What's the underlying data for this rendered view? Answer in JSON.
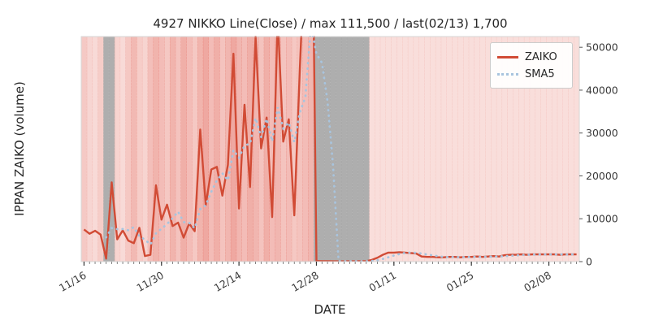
{
  "figure": {
    "title": "4927 NIKKO Line(Close) / max 111,500 / last(02/13) 1,700",
    "xlabel": "DATE",
    "ylabel": "IPPAN ZAIKO (volume)"
  },
  "legend": {
    "items": [
      {
        "label": "ZAIKO",
        "style": "solid",
        "color": "#d14b35"
      },
      {
        "label": "SMA5",
        "style": "dotted",
        "color": "#a8c4de"
      }
    ]
  },
  "chart_data": {
    "type": "line",
    "title": "4927 NIKKO Line(Close) / max 111,500 / last(02/13) 1,700",
    "xlabel": "DATE",
    "ylabel": "IPPAN ZAIKO (volume)",
    "n_days": 90,
    "ylim": [
      0,
      52500
    ],
    "y_ticks": [
      0,
      10000,
      20000,
      30000,
      40000,
      50000
    ],
    "x_ticks": [
      {
        "index": 0,
        "label": "11/16"
      },
      {
        "index": 14,
        "label": "11/30"
      },
      {
        "index": 28,
        "label": "12/14"
      },
      {
        "index": 42,
        "label": "12/28"
      },
      {
        "index": 56,
        "label": "01/11"
      },
      {
        "index": 70,
        "label": "01/25"
      },
      {
        "index": 84,
        "label": "02/08"
      }
    ],
    "series": [
      {
        "name": "ZAIKO",
        "style": "solid",
        "color": "#d14b35",
        "values": [
          7500,
          6500,
          7200,
          6300,
          700,
          18500,
          5200,
          7300,
          4900,
          4300,
          7900,
          1300,
          1600,
          17800,
          9800,
          13300,
          8300,
          9100,
          5600,
          8900,
          7100,
          30800,
          13200,
          21500,
          22100,
          15400,
          22600,
          48500,
          12400,
          36600,
          17400,
          52500,
          26400,
          33600,
          10400,
          57000,
          28000,
          33200,
          10800,
          45000,
          75000,
          111500,
          150,
          100,
          100,
          80,
          80,
          80,
          80,
          80,
          100,
          100,
          400,
          900,
          1600,
          2100,
          2100,
          2200,
          2100,
          2000,
          1900,
          1200,
          1100,
          1100,
          1000,
          1000,
          1100,
          1100,
          1000,
          1100,
          1100,
          1200,
          1100,
          1200,
          1300,
          1200,
          1500,
          1600,
          1600,
          1700,
          1600,
          1700,
          1700,
          1700,
          1700,
          1700,
          1600,
          1700,
          1700,
          1700
        ]
      },
      {
        "name": "SMA5",
        "style": "dotted",
        "color": "#a8c4de",
        "derived": "5-day moving average of ZAIKO",
        "window": 5
      }
    ],
    "background_bands": {
      "red_color": "#e0584a",
      "gray_color": "#a5a5a5",
      "gray_alpha": 0.9,
      "gray_days": [
        4,
        5,
        42,
        43,
        44,
        45,
        46,
        47,
        48,
        49,
        50,
        51
      ],
      "red_alpha_by_day": [
        0.32,
        0.25,
        0.22,
        0.3,
        0,
        0,
        0.26,
        0.22,
        0.33,
        0.42,
        0.3,
        0.26,
        0.38,
        0.45,
        0.4,
        0.33,
        0.45,
        0.36,
        0.48,
        0.4,
        0.33,
        0.45,
        0.52,
        0.4,
        0.48,
        0.36,
        0.44,
        0.52,
        0.44,
        0.4,
        0.48,
        0.44,
        0.36,
        0.48,
        0.4,
        0.44,
        0.36,
        0.4,
        0.33,
        0.36,
        0.4,
        0.44,
        0,
        0,
        0,
        0,
        0,
        0,
        0,
        0,
        0,
        0,
        0.2,
        0.2,
        0.2,
        0.2,
        0.2,
        0.2,
        0.2,
        0.2,
        0.2,
        0.2,
        0.2,
        0.2,
        0.2,
        0.2,
        0.2,
        0.2,
        0.2,
        0.2,
        0.2,
        0.2,
        0.2,
        0.2,
        0.2,
        0.2,
        0.2,
        0.2,
        0.2,
        0.2,
        0.2,
        0.2,
        0.2,
        0.2,
        0.2,
        0.2,
        0.2,
        0.2,
        0.2,
        0.2
      ]
    },
    "annotations": {
      "max_value": 111500,
      "last_date": "02/13",
      "last_value": 1700
    }
  }
}
